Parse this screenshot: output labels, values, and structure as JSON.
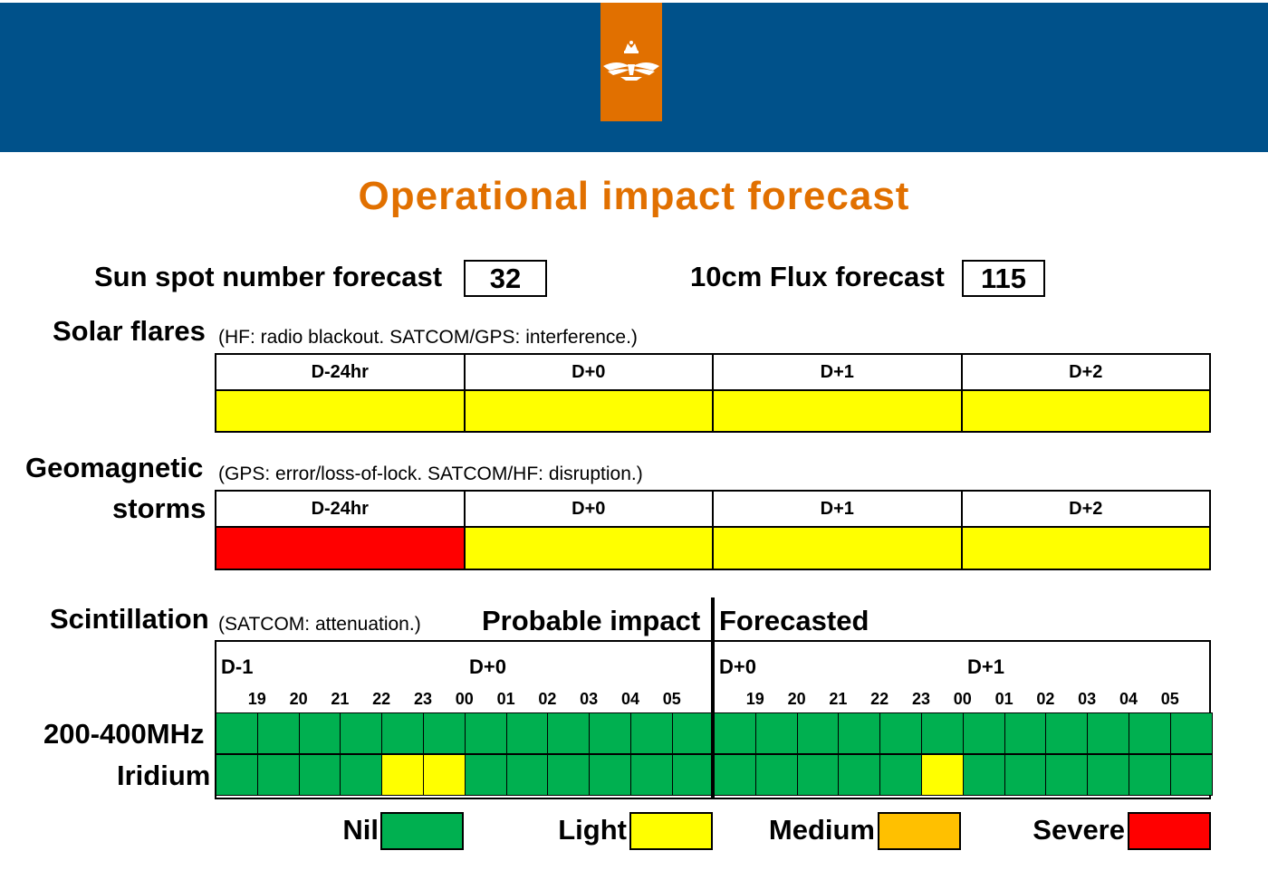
{
  "title": "Operational impact forecast",
  "sunspot": {
    "label": "Sun spot number forecast",
    "value": "32"
  },
  "flux": {
    "label": "10cm Flux forecast",
    "value": "115"
  },
  "solar_flares": {
    "label": "Solar flares",
    "note": "(HF: radio blackout. SATCOM/GPS: interference.)",
    "columns": [
      "D-24hr",
      "D+0",
      "D+1",
      "D+2"
    ],
    "levels": [
      "Light",
      "Light",
      "Light",
      "Light"
    ]
  },
  "geomagnetic": {
    "label_line1": "Geomagnetic",
    "label_line2": "storms",
    "note": "(GPS: error/loss-of-lock. SATCOM/HF: disruption.)",
    "columns": [
      "D-24hr",
      "D+0",
      "D+1",
      "D+2"
    ],
    "levels": [
      "Severe",
      "Light",
      "Light",
      "Light"
    ]
  },
  "scintillation": {
    "label": "Scintillation",
    "note": "(SATCOM: attenuation.)",
    "probable_label": "Probable impact",
    "forecasted_label": "Forecasted",
    "left_days": [
      "D-1",
      "D+0"
    ],
    "right_days": [
      "D+0",
      "D+1"
    ],
    "hours": [
      "19",
      "20",
      "21",
      "22",
      "23",
      "00",
      "01",
      "02",
      "03",
      "04",
      "05"
    ],
    "rows": [
      {
        "label": "200-400MHz",
        "probable": [
          "Nil",
          "Nil",
          "Nil",
          "Nil",
          "Nil",
          "Nil",
          "Nil",
          "Nil",
          "Nil",
          "Nil",
          "Nil",
          "Nil"
        ],
        "forecast": [
          "Nil",
          "Nil",
          "Nil",
          "Nil",
          "Nil",
          "Nil",
          "Nil",
          "Nil",
          "Nil",
          "Nil",
          "Nil",
          "Nil"
        ]
      },
      {
        "label": "Iridium",
        "probable": [
          "Nil",
          "Nil",
          "Nil",
          "Nil",
          "Light",
          "Light",
          "Nil",
          "Nil",
          "Nil",
          "Nil",
          "Nil",
          "Nil"
        ],
        "forecast": [
          "Nil",
          "Nil",
          "Nil",
          "Nil",
          "Nil",
          "Light",
          "Nil",
          "Nil",
          "Nil",
          "Nil",
          "Nil",
          "Nil"
        ]
      }
    ]
  },
  "legend": [
    {
      "label": "Nil",
      "color": "#00b050"
    },
    {
      "label": "Light",
      "color": "#ffff00"
    },
    {
      "label": "Medium",
      "color": "#ffc000"
    },
    {
      "label": "Severe",
      "color": "#ff0000"
    }
  ],
  "colors": {
    "banner": "#00518a",
    "accent": "#e17000"
  },
  "emblem_icon": "crown-eagle-emblem-icon"
}
